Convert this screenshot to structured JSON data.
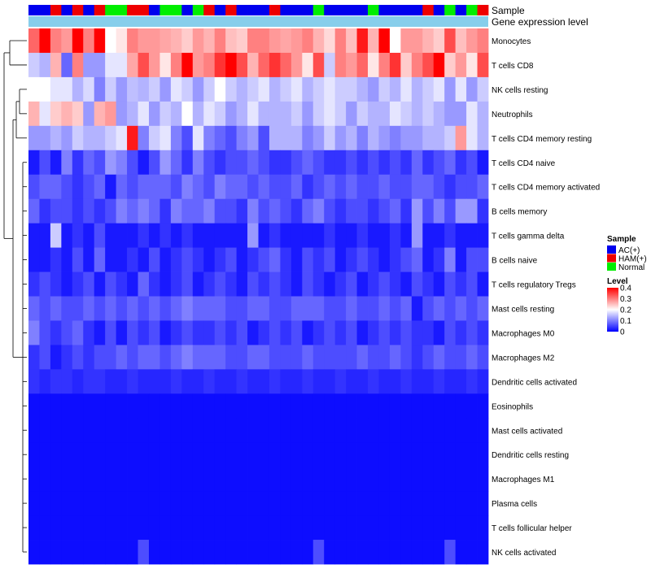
{
  "chart_data": {
    "type": "heatmap",
    "title": "",
    "annotation_tracks": [
      "Sample",
      "Gene expression level"
    ],
    "rows": [
      "Monocytes",
      "T cells CD8",
      "NK cells resting",
      "Neutrophils",
      "T cells CD4 memory resting",
      "T cells CD4 naive",
      "T cells CD4 memory activated",
      "B cells memory",
      "T cells gamma delta",
      "B cells naive",
      "T cells regulatory  Tregs",
      "Mast cells resting",
      "Macrophages M0",
      "Macrophages M2",
      "Dendritic cells activated",
      "Eosinophils",
      "Mast cells activated",
      "Dendritic cells resting",
      "Macrophages M1",
      "Plasma cells",
      "T cells follicular helper",
      "NK cells activated"
    ],
    "sample_groups": [
      "AC(+)",
      "AC(+)",
      "HAM(+)",
      "AC(+)",
      "HAM(+)",
      "AC(+)",
      "HAM(+)",
      "Normal",
      "Normal",
      "HAM(+)",
      "HAM(+)",
      "AC(+)",
      "Normal",
      "Normal",
      "AC(+)",
      "Normal",
      "HAM(+)",
      "AC(+)",
      "HAM(+)",
      "AC(+)",
      "AC(+)",
      "AC(+)",
      "HAM(+)",
      "AC(+)",
      "AC(+)",
      "AC(+)",
      "Normal",
      "AC(+)",
      "AC(+)",
      "AC(+)",
      "AC(+)",
      "Normal",
      "AC(+)",
      "AC(+)",
      "AC(+)",
      "AC(+)",
      "HAM(+)",
      "AC(+)",
      "Normal",
      "AC(+)",
      "Normal",
      "HAM(+)"
    ],
    "values": [
      [
        0.32,
        0.4,
        0.3,
        0.28,
        0.4,
        0.3,
        0.4,
        0.2,
        0.22,
        0.3,
        0.28,
        0.28,
        0.27,
        0.26,
        0.24,
        0.28,
        0.26,
        0.3,
        0.25,
        0.24,
        0.3,
        0.3,
        0.28,
        0.27,
        0.28,
        0.3,
        0.26,
        0.23,
        0.3,
        0.25,
        0.38,
        0.26,
        0.4,
        0.2,
        0.28,
        0.28,
        0.26,
        0.24,
        0.34,
        0.25,
        0.28,
        0.3
      ],
      [
        0.16,
        0.14,
        0.26,
        0.08,
        0.3,
        0.12,
        0.12,
        0.18,
        0.18,
        0.27,
        0.34,
        0.28,
        0.22,
        0.3,
        0.4,
        0.28,
        0.3,
        0.36,
        0.4,
        0.34,
        0.26,
        0.32,
        0.36,
        0.32,
        0.28,
        0.22,
        0.34,
        0.16,
        0.3,
        0.28,
        0.32,
        0.22,
        0.3,
        0.36,
        0.24,
        0.3,
        0.34,
        0.4,
        0.24,
        0.28,
        0.22,
        0.34
      ],
      [
        0.2,
        0.2,
        0.18,
        0.18,
        0.14,
        0.17,
        0.1,
        0.16,
        0.12,
        0.15,
        0.14,
        0.16,
        0.12,
        0.18,
        0.16,
        0.12,
        0.16,
        0.2,
        0.16,
        0.14,
        0.16,
        0.18,
        0.14,
        0.16,
        0.18,
        0.14,
        0.16,
        0.18,
        0.16,
        0.16,
        0.14,
        0.12,
        0.16,
        0.14,
        0.18,
        0.14,
        0.16,
        0.18,
        0.12,
        0.18,
        0.12,
        0.16
      ],
      [
        0.26,
        0.18,
        0.24,
        0.26,
        0.24,
        0.12,
        0.26,
        0.28,
        0.12,
        0.14,
        0.18,
        0.12,
        0.16,
        0.14,
        0.2,
        0.14,
        0.18,
        0.16,
        0.12,
        0.14,
        0.18,
        0.14,
        0.14,
        0.14,
        0.16,
        0.12,
        0.16,
        0.18,
        0.16,
        0.12,
        0.16,
        0.14,
        0.14,
        0.18,
        0.16,
        0.14,
        0.16,
        0.14,
        0.12,
        0.12,
        0.18,
        0.14
      ],
      [
        0.12,
        0.12,
        0.14,
        0.12,
        0.16,
        0.14,
        0.14,
        0.16,
        0.18,
        0.38,
        0.1,
        0.16,
        0.18,
        0.1,
        0.06,
        0.18,
        0.1,
        0.08,
        0.06,
        0.1,
        0.12,
        0.06,
        0.14,
        0.14,
        0.14,
        0.1,
        0.12,
        0.16,
        0.12,
        0.14,
        0.1,
        0.14,
        0.12,
        0.1,
        0.12,
        0.12,
        0.14,
        0.14,
        0.16,
        0.28,
        0.18,
        0.14
      ],
      [
        0.02,
        0.06,
        0.02,
        0.1,
        0.04,
        0.08,
        0.06,
        0.12,
        0.1,
        0.06,
        0.02,
        0.06,
        0.12,
        0.08,
        0.04,
        0.1,
        0.06,
        0.04,
        0.06,
        0.06,
        0.08,
        0.06,
        0.04,
        0.04,
        0.06,
        0.08,
        0.06,
        0.04,
        0.04,
        0.06,
        0.04,
        0.06,
        0.04,
        0.06,
        0.04,
        0.08,
        0.04,
        0.06,
        0.08,
        0.04,
        0.06,
        0.02
      ],
      [
        0.06,
        0.08,
        0.08,
        0.06,
        0.04,
        0.06,
        0.08,
        0.02,
        0.08,
        0.06,
        0.08,
        0.08,
        0.08,
        0.06,
        0.1,
        0.08,
        0.06,
        0.1,
        0.08,
        0.08,
        0.06,
        0.08,
        0.06,
        0.06,
        0.08,
        0.04,
        0.06,
        0.08,
        0.06,
        0.08,
        0.06,
        0.06,
        0.08,
        0.06,
        0.06,
        0.08,
        0.08,
        0.06,
        0.04,
        0.06,
        0.06,
        0.08
      ],
      [
        0.08,
        0.04,
        0.06,
        0.06,
        0.04,
        0.06,
        0.04,
        0.06,
        0.1,
        0.08,
        0.1,
        0.08,
        0.04,
        0.1,
        0.08,
        0.08,
        0.1,
        0.06,
        0.06,
        0.04,
        0.1,
        0.06,
        0.08,
        0.06,
        0.04,
        0.08,
        0.1,
        0.06,
        0.04,
        0.06,
        0.06,
        0.04,
        0.06,
        0.08,
        0.04,
        0.12,
        0.06,
        0.1,
        0.06,
        0.12,
        0.12,
        0.04
      ],
      [
        0.02,
        0.02,
        0.16,
        0.02,
        0.04,
        0.02,
        0.06,
        0.02,
        0.02,
        0.02,
        0.04,
        0.02,
        0.04,
        0.02,
        0.04,
        0.02,
        0.02,
        0.02,
        0.02,
        0.02,
        0.12,
        0.02,
        0.04,
        0.02,
        0.02,
        0.02,
        0.02,
        0.04,
        0.02,
        0.02,
        0.04,
        0.02,
        0.02,
        0.04,
        0.02,
        0.12,
        0.02,
        0.02,
        0.04,
        0.02,
        0.02,
        0.02
      ],
      [
        0.02,
        0.02,
        0.04,
        0.02,
        0.06,
        0.02,
        0.08,
        0.02,
        0.02,
        0.04,
        0.02,
        0.06,
        0.02,
        0.04,
        0.06,
        0.04,
        0.02,
        0.04,
        0.06,
        0.02,
        0.04,
        0.06,
        0.08,
        0.04,
        0.02,
        0.06,
        0.04,
        0.06,
        0.02,
        0.04,
        0.06,
        0.04,
        0.02,
        0.04,
        0.06,
        0.08,
        0.02,
        0.04,
        0.1,
        0.02,
        0.06,
        0.06
      ],
      [
        0.04,
        0.06,
        0.04,
        0.02,
        0.04,
        0.06,
        0.02,
        0.06,
        0.04,
        0.02,
        0.08,
        0.04,
        0.02,
        0.04,
        0.06,
        0.02,
        0.04,
        0.06,
        0.04,
        0.02,
        0.06,
        0.04,
        0.06,
        0.04,
        0.02,
        0.06,
        0.04,
        0.02,
        0.04,
        0.06,
        0.02,
        0.04,
        0.06,
        0.04,
        0.02,
        0.06,
        0.04,
        0.02,
        0.06,
        0.04,
        0.06,
        0.02
      ],
      [
        0.08,
        0.06,
        0.08,
        0.06,
        0.06,
        0.08,
        0.06,
        0.08,
        0.06,
        0.08,
        0.06,
        0.08,
        0.06,
        0.08,
        0.1,
        0.08,
        0.08,
        0.08,
        0.06,
        0.06,
        0.08,
        0.08,
        0.06,
        0.06,
        0.08,
        0.08,
        0.08,
        0.06,
        0.06,
        0.08,
        0.06,
        0.06,
        0.08,
        0.06,
        0.08,
        0.02,
        0.06,
        0.08,
        0.06,
        0.08,
        0.06,
        0.08
      ],
      [
        0.1,
        0.06,
        0.04,
        0.06,
        0.08,
        0.04,
        0.02,
        0.06,
        0.02,
        0.06,
        0.04,
        0.06,
        0.02,
        0.04,
        0.06,
        0.04,
        0.04,
        0.06,
        0.04,
        0.06,
        0.02,
        0.04,
        0.06,
        0.04,
        0.06,
        0.02,
        0.04,
        0.06,
        0.04,
        0.06,
        0.02,
        0.04,
        0.06,
        0.04,
        0.06,
        0.04,
        0.04,
        0.02,
        0.06,
        0.04,
        0.06,
        0.04
      ],
      [
        0.04,
        0.06,
        0.02,
        0.04,
        0.06,
        0.04,
        0.06,
        0.06,
        0.08,
        0.06,
        0.08,
        0.08,
        0.06,
        0.08,
        0.1,
        0.08,
        0.08,
        0.08,
        0.06,
        0.06,
        0.08,
        0.08,
        0.06,
        0.06,
        0.06,
        0.08,
        0.06,
        0.06,
        0.06,
        0.06,
        0.08,
        0.06,
        0.06,
        0.08,
        0.06,
        0.04,
        0.06,
        0.08,
        0.06,
        0.06,
        0.08,
        0.06
      ],
      [
        0.04,
        0.03,
        0.04,
        0.04,
        0.03,
        0.04,
        0.04,
        0.03,
        0.03,
        0.04,
        0.03,
        0.03,
        0.03,
        0.04,
        0.03,
        0.03,
        0.04,
        0.03,
        0.03,
        0.04,
        0.03,
        0.03,
        0.04,
        0.03,
        0.03,
        0.04,
        0.03,
        0.03,
        0.04,
        0.03,
        0.03,
        0.04,
        0.03,
        0.03,
        0.04,
        0.03,
        0.03,
        0.04,
        0.03,
        0.03,
        0.04,
        0.03
      ],
      [
        0.01,
        0.01,
        0.01,
        0.01,
        0.01,
        0.01,
        0.01,
        0.01,
        0.01,
        0.01,
        0.01,
        0.01,
        0.01,
        0.01,
        0.01,
        0.01,
        0.01,
        0.01,
        0.01,
        0.01,
        0.01,
        0.01,
        0.01,
        0.01,
        0.01,
        0.01,
        0.01,
        0.01,
        0.01,
        0.01,
        0.01,
        0.01,
        0.01,
        0.01,
        0.01,
        0.01,
        0.01,
        0.01,
        0.01,
        0.01,
        0.01,
        0.01
      ],
      [
        0.01,
        0.01,
        0.01,
        0.01,
        0.01,
        0.01,
        0.01,
        0.01,
        0.01,
        0.01,
        0.01,
        0.01,
        0.01,
        0.01,
        0.01,
        0.01,
        0.01,
        0.01,
        0.01,
        0.01,
        0.01,
        0.01,
        0.01,
        0.01,
        0.01,
        0.01,
        0.01,
        0.01,
        0.01,
        0.01,
        0.01,
        0.01,
        0.01,
        0.01,
        0.01,
        0.01,
        0.01,
        0.01,
        0.01,
        0.01,
        0.01,
        0.01
      ],
      [
        0.01,
        0.01,
        0.01,
        0.01,
        0.01,
        0.01,
        0.01,
        0.01,
        0.01,
        0.01,
        0.01,
        0.01,
        0.01,
        0.01,
        0.01,
        0.01,
        0.01,
        0.01,
        0.01,
        0.01,
        0.01,
        0.01,
        0.01,
        0.01,
        0.01,
        0.01,
        0.01,
        0.01,
        0.01,
        0.01,
        0.01,
        0.01,
        0.01,
        0.01,
        0.01,
        0.01,
        0.01,
        0.01,
        0.01,
        0.01,
        0.01,
        0.01
      ],
      [
        0.01,
        0.01,
        0.01,
        0.01,
        0.01,
        0.01,
        0.01,
        0.01,
        0.01,
        0.01,
        0.01,
        0.01,
        0.01,
        0.01,
        0.01,
        0.01,
        0.01,
        0.01,
        0.01,
        0.01,
        0.01,
        0.01,
        0.01,
        0.01,
        0.01,
        0.01,
        0.01,
        0.01,
        0.01,
        0.01,
        0.01,
        0.01,
        0.01,
        0.01,
        0.01,
        0.01,
        0.01,
        0.01,
        0.01,
        0.01,
        0.01,
        0.01
      ],
      [
        0.01,
        0.01,
        0.01,
        0.01,
        0.01,
        0.01,
        0.01,
        0.01,
        0.01,
        0.01,
        0.01,
        0.01,
        0.01,
        0.01,
        0.01,
        0.01,
        0.01,
        0.01,
        0.01,
        0.01,
        0.01,
        0.01,
        0.01,
        0.01,
        0.01,
        0.01,
        0.01,
        0.01,
        0.01,
        0.01,
        0.01,
        0.01,
        0.01,
        0.01,
        0.01,
        0.01,
        0.01,
        0.01,
        0.01,
        0.01,
        0.01,
        0.01
      ],
      [
        0.01,
        0.01,
        0.01,
        0.01,
        0.01,
        0.01,
        0.01,
        0.01,
        0.01,
        0.01,
        0.01,
        0.01,
        0.01,
        0.01,
        0.01,
        0.01,
        0.01,
        0.01,
        0.01,
        0.01,
        0.01,
        0.01,
        0.01,
        0.01,
        0.01,
        0.01,
        0.01,
        0.01,
        0.01,
        0.01,
        0.01,
        0.01,
        0.01,
        0.01,
        0.01,
        0.01,
        0.01,
        0.01,
        0.01,
        0.01,
        0.01,
        0.01
      ],
      [
        0.01,
        0.01,
        0.01,
        0.01,
        0.01,
        0.01,
        0.01,
        0.01,
        0.01,
        0.01,
        0.06,
        0.01,
        0.01,
        0.01,
        0.01,
        0.01,
        0.01,
        0.01,
        0.01,
        0.01,
        0.01,
        0.01,
        0.01,
        0.01,
        0.01,
        0.01,
        0.06,
        0.01,
        0.01,
        0.01,
        0.01,
        0.01,
        0.01,
        0.01,
        0.01,
        0.01,
        0.01,
        0.01,
        0.06,
        0.01,
        0.01,
        0.01
      ]
    ],
    "legend_sample": {
      "title": "Sample",
      "entries": [
        {
          "label": "AC(+)",
          "color": "#0000EE"
        },
        {
          "label": "HAM(+)",
          "color": "#EE0000"
        },
        {
          "label": "Normal",
          "color": "#00EE00"
        }
      ]
    },
    "legend_level": {
      "title": "Level",
      "range": [
        0,
        0.4
      ],
      "ticks": [
        "0.4",
        "0.3",
        "0.2",
        "0.1",
        "0"
      ],
      "tick_values": [
        0.4,
        0.3,
        0.2,
        0.1,
        0
      ]
    },
    "expression_track_color": "#87CEEB",
    "color_scale": [
      "#0000FF",
      "#FFFFFF",
      "#FF0000"
    ]
  }
}
